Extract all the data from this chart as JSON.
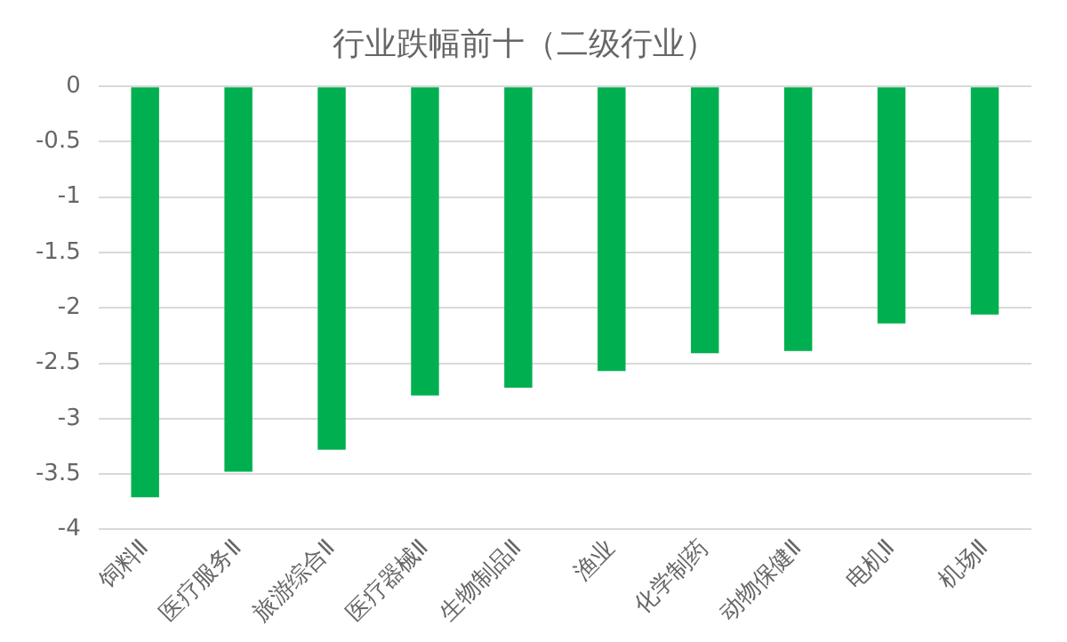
{
  "chart_data": {
    "type": "bar",
    "title": "行业跌幅前十（二级行业）",
    "categories": [
      "饲料Ⅱ",
      "医疗服务Ⅱ",
      "旅游综合Ⅱ",
      "医疗器械Ⅱ",
      "生物制品Ⅱ",
      "渔业",
      "化学制药",
      "动物保健Ⅱ",
      "电机Ⅱ",
      "机场Ⅱ"
    ],
    "values": [
      -3.71,
      -3.48,
      -3.28,
      -2.79,
      -2.72,
      -2.57,
      -2.41,
      -2.39,
      -2.14,
      -2.06
    ],
    "color": "#00b050",
    "ylim": [
      -4,
      0
    ],
    "yticks": [
      0,
      -0.5,
      -1,
      -1.5,
      -2,
      -2.5,
      -3,
      -3.5,
      -4
    ],
    "grid": "y"
  }
}
